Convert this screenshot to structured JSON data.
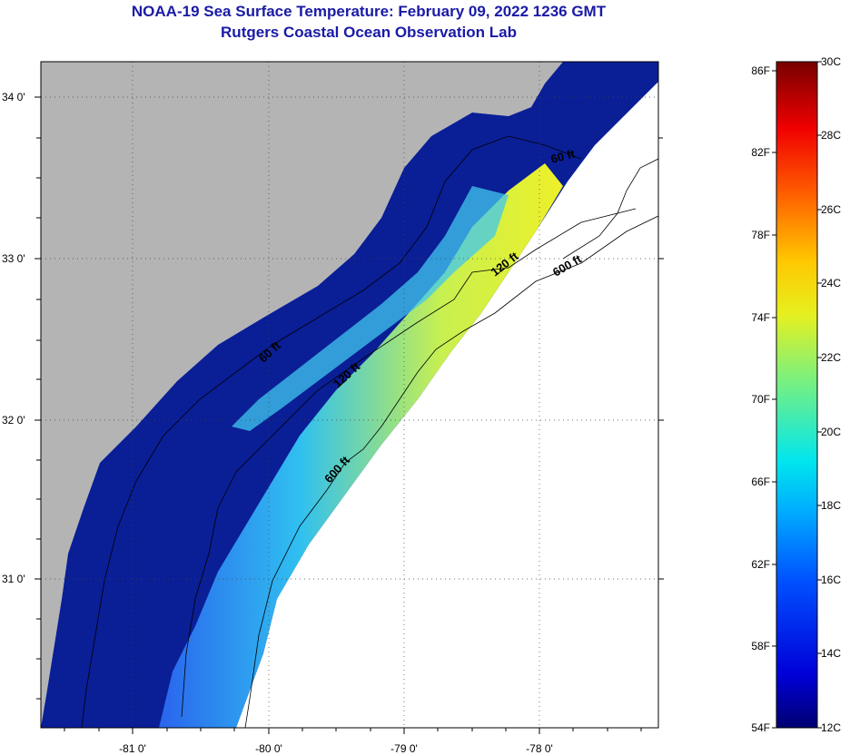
{
  "header": {
    "title": "NOAA-19 Sea Surface Temperature:  February 09, 2022 1236 GMT",
    "subtitle": "Rutgers Coastal Ocean Observation Lab"
  },
  "map": {
    "lat_ticks": [
      "34 0'",
      "33 0'",
      "32 0'",
      "31 0'"
    ],
    "lon_ticks": [
      "-81 0'",
      "-80 0'",
      "-79 0'",
      "-78 0'"
    ],
    "depth_labels": [
      "60 ft",
      "60 ft",
      "120 ft",
      "120 ft",
      "600 ft",
      "600 ft"
    ],
    "colors": {
      "land": "#b4b4b4",
      "no_data": "#ffffff",
      "cold_water": "#0a1e96",
      "warm_water": "#e6ee2a",
      "title": "#1a1aa6"
    }
  },
  "colorbar": {
    "fahrenheit_labels": [
      "86F",
      "82F",
      "78F",
      "74F",
      "70F",
      "66F",
      "62F",
      "58F",
      "54F"
    ],
    "celsius_labels": [
      "30C",
      "28C",
      "26C",
      "24C",
      "22C",
      "20C",
      "18C",
      "16C",
      "14C",
      "12C"
    ],
    "range_celsius": [
      12,
      30
    ]
  }
}
